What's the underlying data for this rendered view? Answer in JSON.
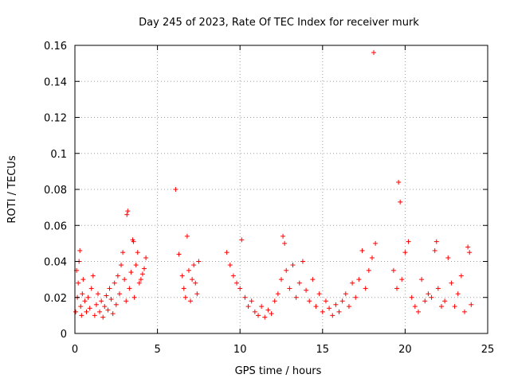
{
  "chart_data": {
    "type": "scatter",
    "title": "Day 245 of 2023, Rate Of TEC Index for receiver murk",
    "xlabel": "GPS time / hours",
    "ylabel": "ROTI / TECUs",
    "xlim": [
      0,
      25
    ],
    "ylim": [
      0,
      0.16
    ],
    "x_ticks": [
      "0",
      "5",
      "10",
      "15",
      "20",
      "25"
    ],
    "y_ticks": [
      "0",
      "0.02",
      "0.04",
      "0.06",
      "0.08",
      "0.1",
      "0.12",
      "0.14",
      "0.16"
    ],
    "grid": true,
    "marker": "+",
    "color": "#ff0000",
    "points": [
      [
        0.05,
        0.012
      ],
      [
        0.1,
        0.035
      ],
      [
        0.15,
        0.02
      ],
      [
        0.2,
        0.028
      ],
      [
        0.25,
        0.04
      ],
      [
        0.3,
        0.046
      ],
      [
        0.35,
        0.015
      ],
      [
        0.4,
        0.01
      ],
      [
        0.45,
        0.022
      ],
      [
        0.5,
        0.03
      ],
      [
        0.6,
        0.018
      ],
      [
        0.7,
        0.012
      ],
      [
        0.8,
        0.02
      ],
      [
        0.9,
        0.014
      ],
      [
        1.0,
        0.025
      ],
      [
        1.1,
        0.032
      ],
      [
        1.2,
        0.01
      ],
      [
        1.3,
        0.016
      ],
      [
        1.4,
        0.022
      ],
      [
        1.5,
        0.012
      ],
      [
        1.6,
        0.018
      ],
      [
        1.7,
        0.009
      ],
      [
        1.8,
        0.015
      ],
      [
        1.9,
        0.021
      ],
      [
        2.0,
        0.013
      ],
      [
        2.1,
        0.025
      ],
      [
        2.2,
        0.019
      ],
      [
        2.3,
        0.011
      ],
      [
        2.4,
        0.028
      ],
      [
        2.5,
        0.016
      ],
      [
        2.6,
        0.032
      ],
      [
        2.7,
        0.022
      ],
      [
        2.8,
        0.038
      ],
      [
        2.9,
        0.045
      ],
      [
        3.0,
        0.03
      ],
      [
        3.1,
        0.018
      ],
      [
        3.15,
        0.066
      ],
      [
        3.2,
        0.068
      ],
      [
        3.3,
        0.025
      ],
      [
        3.4,
        0.034
      ],
      [
        3.5,
        0.052
      ],
      [
        3.55,
        0.051
      ],
      [
        3.6,
        0.02
      ],
      [
        3.7,
        0.038
      ],
      [
        3.8,
        0.045
      ],
      [
        3.9,
        0.028
      ],
      [
        4.0,
        0.03
      ],
      [
        4.1,
        0.033
      ],
      [
        4.2,
        0.036
      ],
      [
        4.3,
        0.042
      ],
      [
        6.1,
        0.08
      ],
      [
        6.3,
        0.044
      ],
      [
        6.5,
        0.032
      ],
      [
        6.6,
        0.025
      ],
      [
        6.7,
        0.02
      ],
      [
        6.8,
        0.054
      ],
      [
        6.9,
        0.035
      ],
      [
        7.0,
        0.018
      ],
      [
        7.1,
        0.03
      ],
      [
        7.2,
        0.038
      ],
      [
        7.3,
        0.028
      ],
      [
        7.4,
        0.022
      ],
      [
        7.5,
        0.04
      ],
      [
        9.2,
        0.045
      ],
      [
        9.4,
        0.038
      ],
      [
        9.6,
        0.032
      ],
      [
        9.8,
        0.028
      ],
      [
        10.0,
        0.025
      ],
      [
        10.1,
        0.052
      ],
      [
        10.3,
        0.02
      ],
      [
        10.5,
        0.015
      ],
      [
        10.7,
        0.018
      ],
      [
        10.9,
        0.012
      ],
      [
        11.1,
        0.01
      ],
      [
        11.3,
        0.015
      ],
      [
        11.5,
        0.009
      ],
      [
        11.7,
        0.013
      ],
      [
        11.9,
        0.011
      ],
      [
        12.1,
        0.018
      ],
      [
        12.3,
        0.022
      ],
      [
        12.5,
        0.03
      ],
      [
        12.6,
        0.054
      ],
      [
        12.7,
        0.05
      ],
      [
        12.8,
        0.035
      ],
      [
        13.0,
        0.025
      ],
      [
        13.2,
        0.038
      ],
      [
        13.4,
        0.02
      ],
      [
        13.6,
        0.028
      ],
      [
        13.8,
        0.04
      ],
      [
        14.0,
        0.024
      ],
      [
        14.2,
        0.018
      ],
      [
        14.4,
        0.03
      ],
      [
        14.6,
        0.015
      ],
      [
        14.8,
        0.022
      ],
      [
        15.0,
        0.012
      ],
      [
        15.2,
        0.018
      ],
      [
        15.4,
        0.014
      ],
      [
        15.6,
        0.01
      ],
      [
        15.8,
        0.016
      ],
      [
        16.0,
        0.012
      ],
      [
        16.2,
        0.018
      ],
      [
        16.4,
        0.022
      ],
      [
        16.6,
        0.015
      ],
      [
        16.8,
        0.028
      ],
      [
        17.0,
        0.02
      ],
      [
        17.2,
        0.03
      ],
      [
        17.4,
        0.046
      ],
      [
        17.6,
        0.025
      ],
      [
        17.8,
        0.035
      ],
      [
        18.0,
        0.042
      ],
      [
        18.1,
        0.156
      ],
      [
        18.2,
        0.05
      ],
      [
        19.3,
        0.035
      ],
      [
        19.5,
        0.025
      ],
      [
        19.6,
        0.084
      ],
      [
        19.7,
        0.073
      ],
      [
        19.8,
        0.03
      ],
      [
        20.0,
        0.045
      ],
      [
        20.2,
        0.051
      ],
      [
        20.4,
        0.02
      ],
      [
        20.6,
        0.015
      ],
      [
        20.8,
        0.012
      ],
      [
        21.0,
        0.03
      ],
      [
        21.2,
        0.018
      ],
      [
        21.4,
        0.022
      ],
      [
        21.6,
        0.02
      ],
      [
        21.8,
        0.046
      ],
      [
        21.9,
        0.051
      ],
      [
        22.0,
        0.025
      ],
      [
        22.2,
        0.015
      ],
      [
        22.4,
        0.018
      ],
      [
        22.6,
        0.042
      ],
      [
        22.8,
        0.028
      ],
      [
        23.0,
        0.015
      ],
      [
        23.2,
        0.022
      ],
      [
        23.4,
        0.032
      ],
      [
        23.6,
        0.012
      ],
      [
        23.8,
        0.048
      ],
      [
        23.9,
        0.045
      ],
      [
        24.0,
        0.016
      ]
    ]
  }
}
